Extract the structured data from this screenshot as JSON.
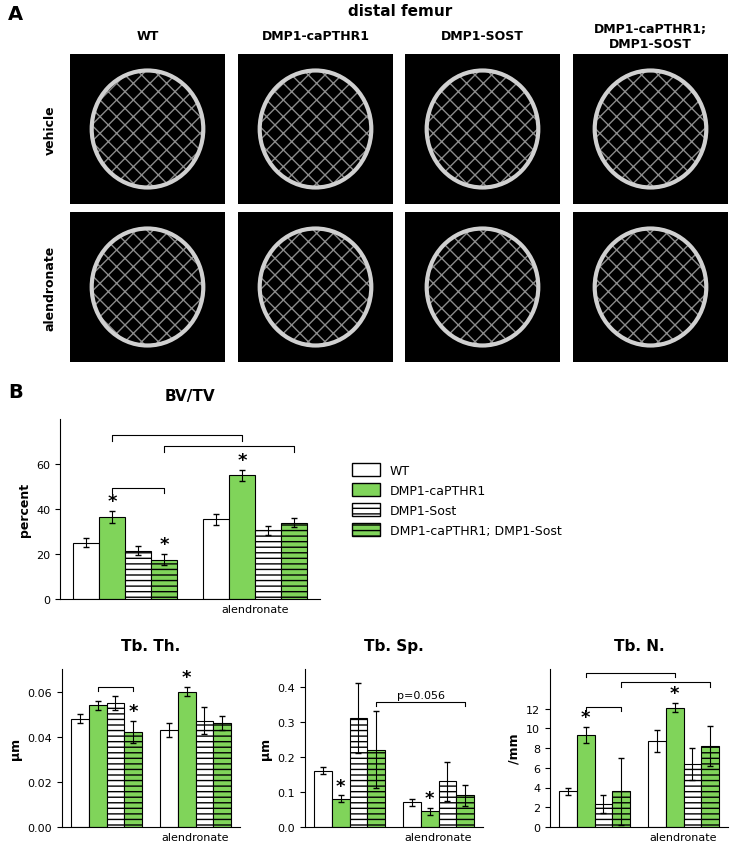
{
  "figure": {
    "panel_a": {
      "label": "A",
      "title": "distal femur",
      "columns": [
        "WT",
        "DMP1-caPTHR1",
        "DMP1-SOST",
        "DMP1-caPTHR1;\nDMP1-SOST"
      ],
      "rows": [
        "vehicle",
        "alendronate"
      ]
    },
    "panel_b": {
      "label": "B"
    }
  },
  "chart_data": [
    {
      "type": "bar",
      "title": "BV/TV",
      "y_label": "percent",
      "categories": [
        null,
        "alendronate"
      ],
      "series": [
        {
          "name": "WT",
          "color": "#ffffff",
          "values": [
            25,
            35.5
          ],
          "errors": [
            2,
            2.5
          ]
        },
        {
          "name": "DMP1-caPTHR1",
          "color": "#80d45a",
          "values": [
            36.5,
            55
          ],
          "errors": [
            2.5,
            2.5
          ]
        },
        {
          "name": "DMP1-Sost",
          "color": "#ffffff",
          "values": [
            21.5,
            30.5
          ],
          "errors": [
            2,
            2
          ]
        },
        {
          "name": "DMP1-caPTHR1; DMP1-Sost",
          "color": "#80d45a",
          "values": [
            17.5,
            34
          ],
          "errors": [
            2.5,
            2
          ]
        }
      ],
      "ylim": [
        0,
        80
      ],
      "yticks": [
        0,
        20,
        40,
        60
      ],
      "legend": "center left",
      "annotations": [
        {
          "text": "*",
          "series": 1,
          "category": 0
        },
        {
          "text": "*",
          "series": 3,
          "category": 0
        },
        {
          "text": "*",
          "series": 1,
          "category": 1
        }
      ],
      "brackets": [
        {
          "from": {
            "series": 1,
            "category": 0
          },
          "to": {
            "series": 3,
            "category": 0
          }
        },
        {
          "from": {
            "series": 3,
            "category": 0
          },
          "to": {
            "series": 3,
            "category": 1
          }
        },
        {
          "from": {
            "series": 1,
            "category": 0
          },
          "to": {
            "series": 1,
            "category": 1
          }
        }
      ]
    },
    {
      "type": "bar",
      "title": "Tb. Th.",
      "y_label": "µm",
      "categories": [
        null,
        "alendronate"
      ],
      "series": [
        {
          "name": "WT",
          "color": "#ffffff",
          "values": [
            0.048,
            0.043
          ],
          "errors": [
            0.002,
            0.003
          ]
        },
        {
          "name": "DMP1-caPTHR1",
          "color": "#80d45a",
          "values": [
            0.054,
            0.06
          ],
          "errors": [
            0.002,
            0.002
          ]
        },
        {
          "name": "DMP1-Sost",
          "color": "#ffffff",
          "values": [
            0.055,
            0.047
          ],
          "errors": [
            0.003,
            0.006
          ]
        },
        {
          "name": "DMP1-caPTHR1; DMP1-Sost",
          "color": "#80d45a",
          "values": [
            0.042,
            0.046
          ],
          "errors": [
            0.005,
            0.003
          ]
        }
      ],
      "ylim": [
        0,
        0.07
      ],
      "yticks": [
        {
          "value": 0,
          "label": "0.00"
        },
        {
          "value": 0.02,
          "label": "0.02"
        },
        {
          "value": 0.04,
          "label": "0.04"
        },
        {
          "value": 0.06,
          "label": "0.06"
        }
      ],
      "annotations": [
        {
          "text": "*",
          "series": 3,
          "category": 0
        },
        {
          "text": "*",
          "series": 1,
          "category": 1
        }
      ],
      "brackets": [
        {
          "from": {
            "series": 1,
            "category": 0
          },
          "to": {
            "series": 3,
            "category": 0
          }
        }
      ]
    },
    {
      "type": "bar",
      "title": "Tb. Sp.",
      "y_label": "µm",
      "categories": [
        null,
        "alendronate"
      ],
      "series": [
        {
          "name": "WT",
          "color": "#ffffff",
          "values": [
            0.16,
            0.07
          ],
          "errors": [
            0.01,
            0.01
          ]
        },
        {
          "name": "DMP1-caPTHR1",
          "color": "#80d45a",
          "values": [
            0.08,
            0.045
          ],
          "errors": [
            0.01,
            0.01
          ]
        },
        {
          "name": "DMP1-Sost",
          "color": "#ffffff",
          "values": [
            0.31,
            0.13
          ],
          "errors": [
            0.1,
            0.055
          ]
        },
        {
          "name": "DMP1-caPTHR1; DMP1-Sost",
          "color": "#80d45a",
          "values": [
            0.22,
            0.09
          ],
          "errors": [
            0.11,
            0.03
          ]
        }
      ],
      "ylim": [
        0,
        0.45
      ],
      "yticks": [
        0.0,
        0.1,
        0.2,
        0.3,
        0.4
      ],
      "annotations": [
        {
          "text": "*",
          "series": 1,
          "category": 0
        },
        {
          "text": "*",
          "series": 1,
          "category": 1
        }
      ],
      "brackets": [
        {
          "from": {
            "series": 3,
            "category": 0
          },
          "to": {
            "series": 3,
            "category": 1
          },
          "label": "p=0.056"
        }
      ]
    },
    {
      "type": "bar",
      "title": "Tb. N.",
      "y_label": "/mm",
      "categories": [
        null,
        "alendronate"
      ],
      "series": [
        {
          "name": "WT",
          "color": "#ffffff",
          "values": [
            3.6,
            8.7
          ],
          "errors": [
            0.4,
            1.1
          ]
        },
        {
          "name": "DMP1-caPTHR1",
          "color": "#80d45a",
          "values": [
            9.3,
            12.1
          ],
          "errors": [
            0.8,
            0.5
          ]
        },
        {
          "name": "DMP1-Sost",
          "color": "#ffffff",
          "values": [
            2.3,
            6.4
          ],
          "errors": [
            0.9,
            1.6
          ]
        },
        {
          "name": "DMP1-caPTHR1; DMP1-Sost",
          "color": "#80d45a",
          "values": [
            3.6,
            8.2
          ],
          "errors": [
            3.4,
            2.0
          ]
        }
      ],
      "ylim": [
        0,
        16
      ],
      "yticks": [
        0,
        2,
        4,
        6,
        8,
        10,
        12
      ],
      "annotations": [
        {
          "text": "*",
          "series": 1,
          "category": 0
        },
        {
          "text": "*",
          "series": 1,
          "category": 1
        }
      ],
      "brackets": [
        {
          "from": {
            "series": 1,
            "category": 0
          },
          "to": {
            "series": 3,
            "category": 0
          }
        },
        {
          "from": {
            "series": 3,
            "category": 0
          },
          "to": {
            "series": 3,
            "category": 1
          }
        },
        {
          "from": {
            "series": 1,
            "category": 0
          },
          "to": {
            "series": 1,
            "category": 1
          }
        }
      ]
    }
  ]
}
